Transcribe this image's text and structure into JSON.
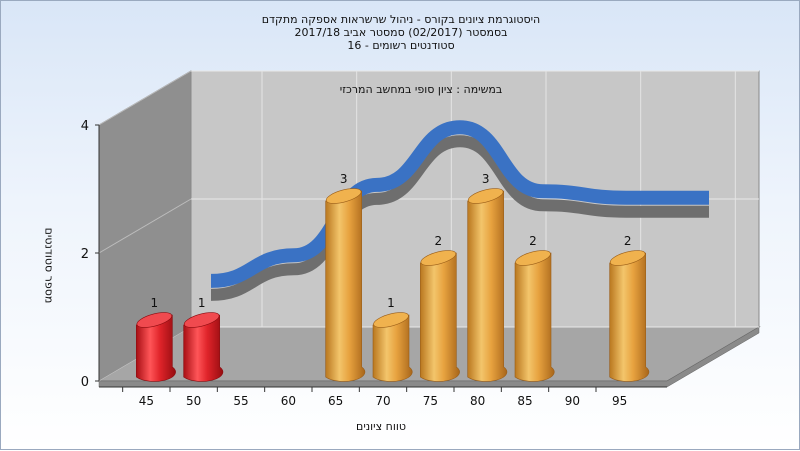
{
  "title_lines": [
    "היסטוגרמת ציונים בקורס - ניהול שרשראות אספקה מתקדם",
    "בסמסטר  (02/2017)  סמסטר אביב 2017/18",
    "סטודנטים רשומים - 16"
  ],
  "chart_data": {
    "type": "bar",
    "title": "היסטוגרמת ציונים בקורס - ניהול שרשראות אספקה מתקדם",
    "subtitle": "במשימה : ציון סופי במחשב המרכזי",
    "xlabel": "טווח ציונים",
    "ylabel": "מספר סטודנטים",
    "categories": [
      "45",
      "50",
      "55",
      "60",
      "65",
      "70",
      "75",
      "80",
      "85",
      "90",
      "95"
    ],
    "values": [
      1,
      1,
      0,
      0,
      3,
      1,
      2,
      3,
      2,
      0,
      2
    ],
    "labels": [
      "1",
      "1",
      "",
      "",
      "3",
      "1",
      "2",
      "3",
      "2",
      "",
      "2"
    ],
    "y_ticks": [
      "0",
      "2",
      "4"
    ],
    "ylim": [
      0,
      4
    ],
    "grid": true,
    "bar_colors": [
      "#e0242a",
      "#e0242a",
      "#e0242a",
      "#e0242a",
      "#e7a23f",
      "#e7a23f",
      "#e7a23f",
      "#e7a23f",
      "#e7a23f",
      "#e7a23f",
      "#e7a23f"
    ],
    "ribbon_color": "#3a72c4",
    "ribbon_shadow_color": "#6e6e6e",
    "ribbon_values": [
      1.1,
      1.5,
      2.6,
      3.5,
      2.5,
      2.4,
      2.4
    ]
  }
}
